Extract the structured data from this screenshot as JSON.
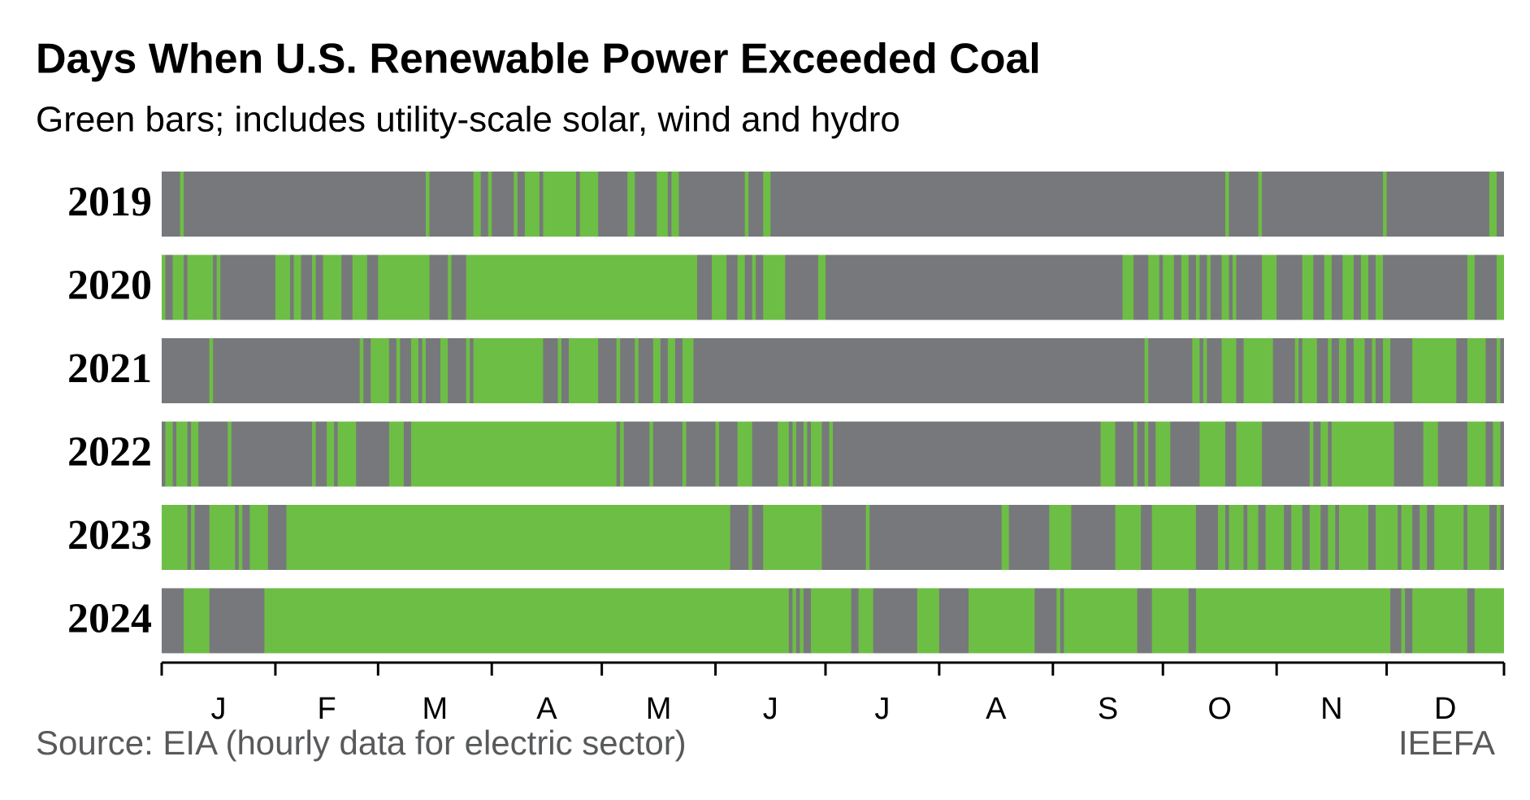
{
  "chart_data": {
    "type": "timeline",
    "title": "Days When U.S. Renewable Power Exceeded Coal",
    "subtitle": "Green bars; includes utility-scale solar, wind and hydro",
    "source": "Source: EIA (hourly data for electric sector)",
    "credit": "IEEFA",
    "background_color": "#77787b",
    "xlim": [
      0,
      366
    ],
    "xticks": [
      0,
      31,
      59,
      90,
      120,
      151,
      181,
      212,
      243,
      273,
      304,
      334,
      366
    ],
    "categories": [
      "J",
      "F",
      "M",
      "A",
      "M",
      "J",
      "J",
      "A",
      "S",
      "O",
      "N",
      "D"
    ],
    "series": [
      {
        "name": "2019",
        "color": "#6dbe45",
        "values": [
          [
            5,
            6
          ],
          [
            72,
            73
          ],
          [
            85,
            87
          ],
          [
            89,
            90
          ],
          [
            96,
            97
          ],
          [
            99,
            103
          ],
          [
            104,
            113
          ],
          [
            114,
            119
          ],
          [
            127,
            129
          ],
          [
            135,
            138
          ],
          [
            139,
            141
          ],
          [
            159,
            160
          ],
          [
            164,
            166
          ],
          [
            290,
            291
          ],
          [
            299,
            300
          ],
          [
            333,
            334
          ],
          [
            362,
            364
          ]
        ]
      },
      {
        "name": "2020",
        "color": "#6dbe45",
        "values": [
          [
            0,
            1
          ],
          [
            3,
            6
          ],
          [
            7,
            14
          ],
          [
            15,
            16
          ],
          [
            31,
            35
          ],
          [
            36,
            38
          ],
          [
            41,
            42
          ],
          [
            44,
            49
          ],
          [
            52,
            56
          ],
          [
            59,
            70
          ],
          [
            70,
            73
          ],
          [
            78,
            79
          ],
          [
            83,
            146
          ],
          [
            150,
            154
          ],
          [
            157,
            159
          ],
          [
            161,
            162
          ],
          [
            164,
            170
          ],
          [
            179,
            181
          ],
          [
            262,
            265
          ],
          [
            269,
            272
          ],
          [
            273,
            276
          ],
          [
            278,
            280
          ],
          [
            282,
            283
          ],
          [
            285,
            286
          ],
          [
            289,
            291
          ],
          [
            292,
            293
          ],
          [
            300,
            304
          ],
          [
            311,
            314
          ],
          [
            317,
            319
          ],
          [
            322,
            325
          ],
          [
            327,
            329
          ],
          [
            331,
            333
          ],
          [
            356,
            358
          ],
          [
            364,
            366
          ]
        ]
      },
      {
        "name": "2021",
        "color": "#6dbe45",
        "values": [
          [
            13,
            14
          ],
          [
            54,
            55
          ],
          [
            57,
            62
          ],
          [
            64,
            65
          ],
          [
            68,
            70
          ],
          [
            71,
            72
          ],
          [
            76,
            78
          ],
          [
            83,
            84
          ],
          [
            85,
            104
          ],
          [
            108,
            109
          ],
          [
            111,
            119
          ],
          [
            124,
            125
          ],
          [
            129,
            130
          ],
          [
            134,
            136
          ],
          [
            138,
            140
          ],
          [
            142,
            145
          ],
          [
            268,
            269
          ],
          [
            281,
            283
          ],
          [
            284,
            285
          ],
          [
            289,
            293
          ],
          [
            295,
            303
          ],
          [
            309,
            310
          ],
          [
            311,
            315
          ],
          [
            318,
            319
          ],
          [
            321,
            323
          ],
          [
            325,
            328
          ],
          [
            330,
            331
          ],
          [
            333,
            335
          ],
          [
            341,
            353
          ],
          [
            356,
            361
          ],
          [
            364,
            365
          ]
        ]
      },
      {
        "name": "2022",
        "color": "#6dbe45",
        "values": [
          [
            1,
            3
          ],
          [
            4,
            7
          ],
          [
            8,
            10
          ],
          [
            18,
            19
          ],
          [
            41,
            42
          ],
          [
            45,
            47
          ],
          [
            48,
            53
          ],
          [
            62,
            66
          ],
          [
            68,
            124
          ],
          [
            125,
            126
          ],
          [
            133,
            134
          ],
          [
            142,
            143
          ],
          [
            151,
            152
          ],
          [
            157,
            161
          ],
          [
            168,
            171
          ],
          [
            172,
            173
          ],
          [
            175,
            176
          ],
          [
            177,
            180
          ],
          [
            182,
            183
          ],
          [
            256,
            260
          ],
          [
            265,
            266
          ],
          [
            268,
            269
          ],
          [
            271,
            275
          ],
          [
            283,
            290
          ],
          [
            293,
            300
          ],
          [
            313,
            314
          ],
          [
            316,
            318
          ],
          [
            319,
            336
          ],
          [
            344,
            348
          ],
          [
            356,
            361
          ],
          [
            363,
            365
          ]
        ]
      },
      {
        "name": "2023",
        "color": "#6dbe45",
        "values": [
          [
            0,
            7
          ],
          [
            8,
            9
          ],
          [
            13,
            20
          ],
          [
            21,
            22
          ],
          [
            24,
            29
          ],
          [
            34,
            155
          ],
          [
            160,
            161
          ],
          [
            164,
            180
          ],
          [
            192,
            193
          ],
          [
            229,
            231
          ],
          [
            242,
            248
          ],
          [
            260,
            267
          ],
          [
            270,
            282
          ],
          [
            288,
            290
          ],
          [
            291,
            295
          ],
          [
            296,
            299
          ],
          [
            301,
            306
          ],
          [
            308,
            311
          ],
          [
            313,
            316
          ],
          [
            318,
            320
          ],
          [
            321,
            329
          ],
          [
            331,
            337
          ],
          [
            338,
            341
          ],
          [
            343,
            345
          ],
          [
            347,
            355
          ],
          [
            356,
            362
          ],
          [
            364,
            365
          ]
        ]
      },
      {
        "name": "2024",
        "color": "#6dbe45",
        "values": [
          [
            6,
            13
          ],
          [
            28,
            30
          ],
          [
            30,
            171
          ],
          [
            172,
            173
          ],
          [
            174,
            175
          ],
          [
            177,
            188
          ],
          [
            190,
            194
          ],
          [
            206,
            212
          ],
          [
            220,
            238
          ],
          [
            244,
            245
          ],
          [
            246,
            266
          ],
          [
            270,
            280
          ],
          [
            282,
            335
          ],
          [
            338,
            339
          ],
          [
            341,
            356
          ],
          [
            358,
            366
          ]
        ]
      }
    ]
  }
}
